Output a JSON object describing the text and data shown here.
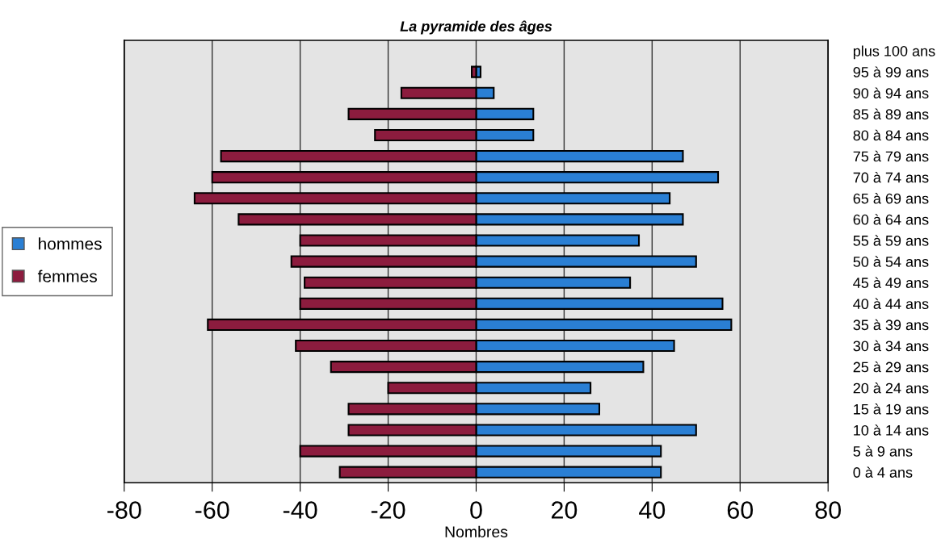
{
  "chart_data": {
    "type": "bar",
    "orientation": "horizontal",
    "title": "La pyramide des âges",
    "xlabel": "Nombres",
    "categories": [
      "plus 100 ans",
      "95 à 99 ans",
      "90 à 94 ans",
      "85 à 89 ans",
      "80 à 84 ans",
      "75 à 79 ans",
      "70 à 74 ans",
      "65 à 69 ans",
      "60 à 64 ans",
      "55 à 59 ans",
      "50 à 54 ans",
      "45 à 49 ans",
      "40 à 44 ans",
      "35 à 39 ans",
      "30 à 34 ans",
      "25 à 29 ans",
      "20 à 24 ans",
      "15 à 19 ans",
      "10 à 14 ans",
      "5 à 9 ans",
      "0 à 4 ans"
    ],
    "series": [
      {
        "name": "hommes",
        "color": "#2a7fd4",
        "values": [
          null,
          1,
          4,
          13,
          13,
          47,
          55,
          44,
          47,
          37,
          50,
          35,
          56,
          58,
          45,
          38,
          26,
          28,
          50,
          42,
          42
        ]
      },
      {
        "name": "femmes",
        "color": "#8c1c3e",
        "values": [
          null,
          -1,
          -17,
          -29,
          -23,
          -58,
          -60,
          -64,
          -54,
          -40,
          -42,
          -39,
          -40,
          -61,
          -41,
          -33,
          -20,
          -29,
          -29,
          -40,
          -31
        ]
      }
    ],
    "xlim": [
      -80,
      80
    ],
    "xticks": [
      -80,
      -60,
      -40,
      -20,
      0,
      20,
      40,
      60,
      80
    ],
    "grid": "x",
    "legend": "left",
    "stacked": true
  }
}
